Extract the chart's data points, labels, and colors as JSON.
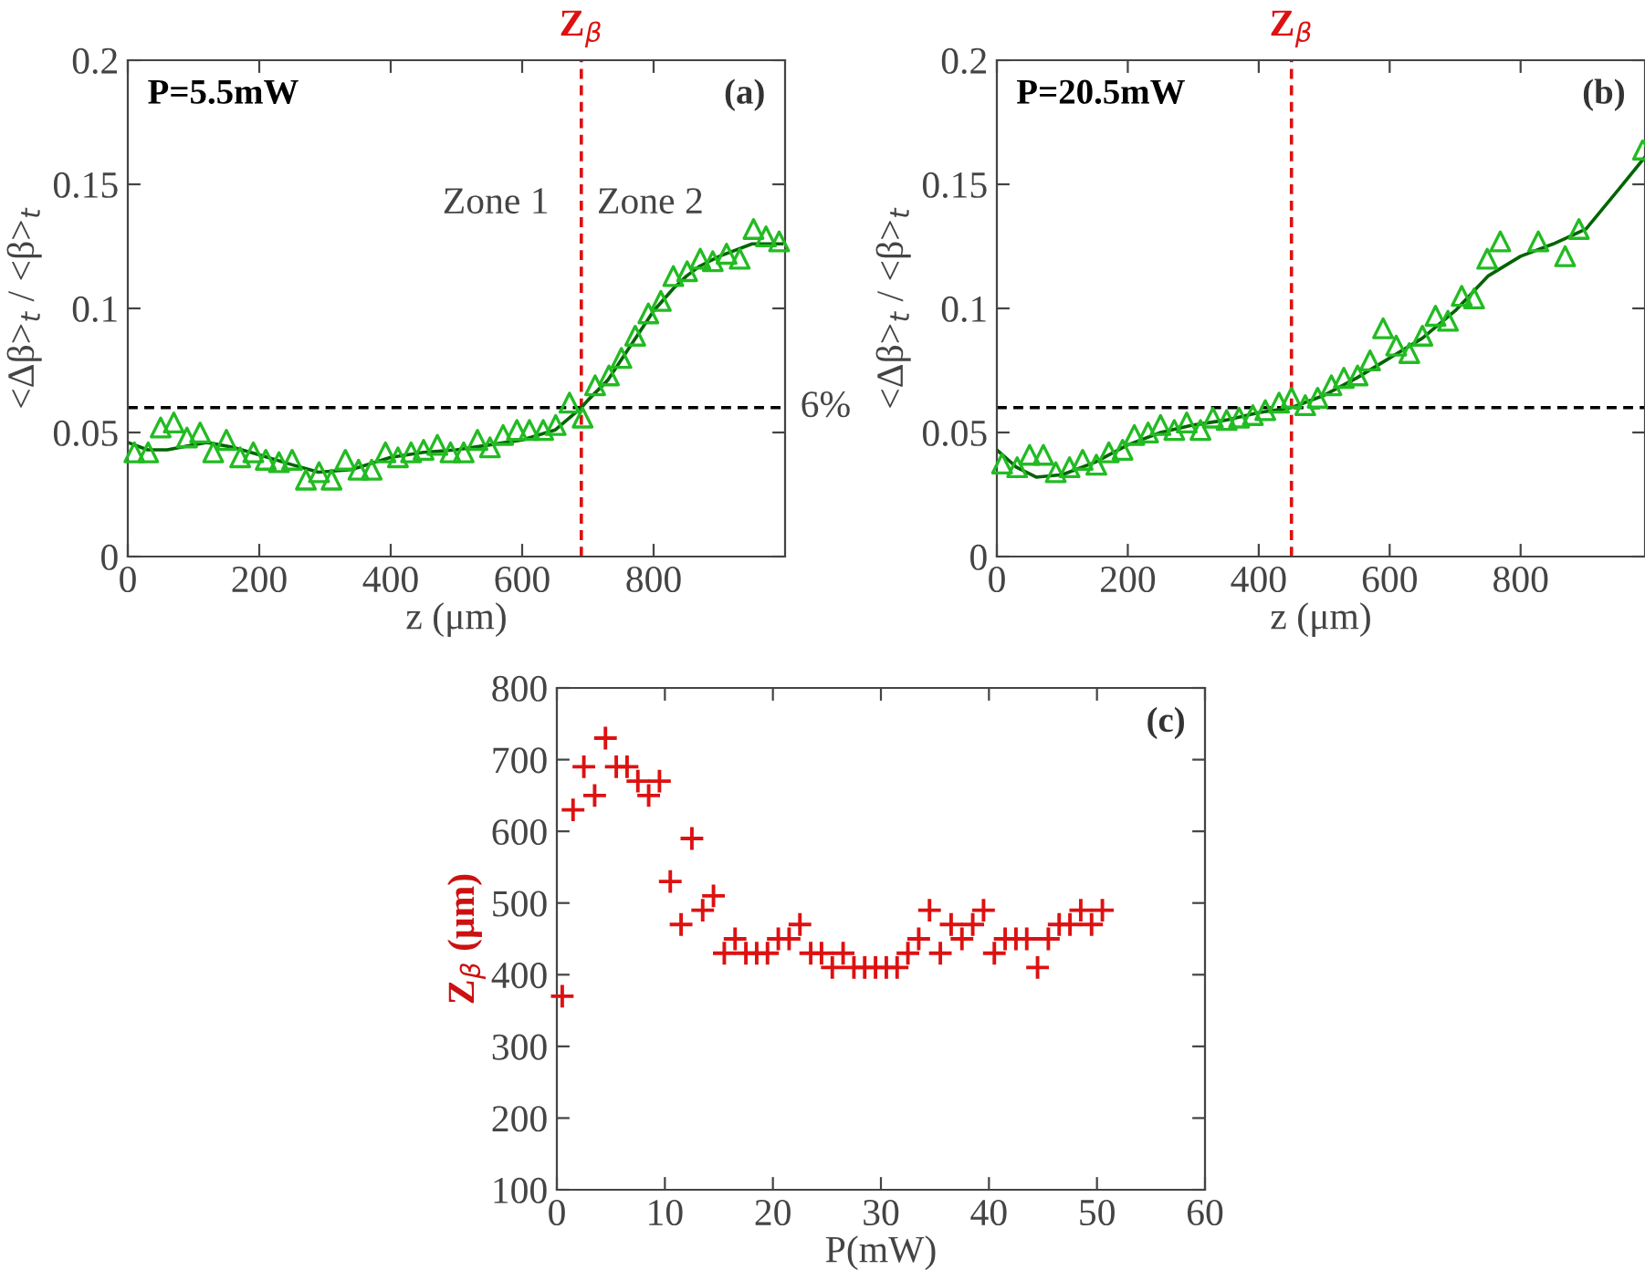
{
  "chart_data": [
    {
      "type": "scatter",
      "xlabel": "z (μm)",
      "ylabel": "<Δβ>$_{t}$ / <β>$_{t}$",
      "xlim": [
        0,
        1000
      ],
      "ylim": [
        0,
        0.2
      ],
      "xticks": [
        0,
        200,
        400,
        600,
        800
      ],
      "yticks": [
        0,
        0.05,
        0.1,
        0.15,
        0.2
      ],
      "grid": false,
      "annotations": [
        "P=5.5mW",
        "(a)",
        "Zone 1",
        "Zone 2"
      ],
      "ref_lines": [
        {
          "axis": "y",
          "value": 0.06,
          "label": "6%",
          "color": "#000000",
          "line_style": "dashed"
        },
        {
          "axis": "x",
          "value": 690,
          "label": "Z$_{β}$",
          "color": "#dd1111",
          "line_style": "dashed"
        }
      ],
      "series": [
        {
          "marker": "triangle",
          "color": "#22bb22",
          "x": [
            10,
            31,
            50,
            70,
            90,
            110,
            130,
            150,
            171,
            191,
            210,
            230,
            250,
            271,
            291,
            310,
            331,
            351,
            371,
            392,
            411,
            431,
            450,
            471,
            491,
            511,
            532,
            551,
            571,
            592,
            611,
            632,
            651,
            672,
            692,
            711,
            732,
            751,
            772,
            792,
            811,
            830,
            851,
            871,
            890,
            911,
            931,
            952,
            971,
            991
          ],
          "values": [
            0.042,
            0.042,
            0.052,
            0.054,
            0.048,
            0.05,
            0.042,
            0.047,
            0.04,
            0.042,
            0.039,
            0.038,
            0.039,
            0.031,
            0.034,
            0.031,
            0.039,
            0.035,
            0.035,
            0.042,
            0.04,
            0.042,
            0.043,
            0.045,
            0.042,
            0.042,
            0.047,
            0.044,
            0.049,
            0.051,
            0.051,
            0.051,
            0.053,
            0.062,
            0.056,
            0.069,
            0.073,
            0.08,
            0.089,
            0.098,
            0.103,
            0.113,
            0.115,
            0.12,
            0.119,
            0.122,
            0.12,
            0.132,
            0.129,
            0.127
          ]
        },
        {
          "type": "line",
          "color": "#006400",
          "x": [
            0,
            30,
            60,
            120,
            160,
            200,
            250,
            290,
            340,
            400,
            450,
            500,
            550,
            600,
            650,
            690,
            700,
            730,
            760,
            800,
            830,
            850,
            870,
            900,
            950,
            995
          ],
          "values": [
            0.046,
            0.043,
            0.043,
            0.046,
            0.044,
            0.041,
            0.037,
            0.034,
            0.035,
            0.04,
            0.042,
            0.043,
            0.045,
            0.047,
            0.051,
            0.06,
            0.063,
            0.071,
            0.083,
            0.099,
            0.108,
            0.113,
            0.117,
            0.121,
            0.126,
            0.126
          ]
        }
      ]
    },
    {
      "type": "scatter",
      "xlabel": "z (μm)",
      "ylabel": "<Δβ>$_{t}$ / <β>$_{t}$",
      "xlim": [
        0,
        990
      ],
      "ylim": [
        0,
        0.2
      ],
      "xticks": [
        0,
        200,
        400,
        600,
        800
      ],
      "yticks": [
        0,
        0.05,
        0.1,
        0.15,
        0.2
      ],
      "grid": false,
      "annotations": [
        "P=20.5mW",
        "(b)"
      ],
      "ref_lines": [
        {
          "axis": "y",
          "value": 0.06,
          "color": "#000000",
          "line_style": "dashed"
        },
        {
          "axis": "x",
          "value": 450,
          "label": "Z$_{β}$",
          "color": "#dd1111",
          "line_style": "dashed"
        }
      ],
      "series": [
        {
          "marker": "triangle",
          "color": "#22bb22",
          "x": [
            8,
            31,
            50,
            71,
            90,
            111,
            131,
            152,
            171,
            192,
            210,
            231,
            250,
            271,
            290,
            311,
            330,
            351,
            370,
            391,
            410,
            431,
            450,
            471,
            490,
            511,
            530,
            551,
            570,
            590,
            610,
            630,
            650,
            670,
            689,
            710,
            729,
            749,
            769,
            827,
            868,
            889,
            987
          ],
          "values": [
            0.0375,
            0.036,
            0.041,
            0.041,
            0.034,
            0.036,
            0.039,
            0.037,
            0.042,
            0.043,
            0.049,
            0.05,
            0.053,
            0.051,
            0.054,
            0.051,
            0.056,
            0.055,
            0.056,
            0.057,
            0.059,
            0.062,
            0.064,
            0.061,
            0.064,
            0.069,
            0.072,
            0.073,
            0.079,
            0.092,
            0.085,
            0.082,
            0.089,
            0.097,
            0.095,
            0.105,
            0.104,
            0.12,
            0.127,
            0.127,
            0.121,
            0.132,
            0.164
          ]
        },
        {
          "type": "line",
          "color": "#006400",
          "x": [
            0,
            30,
            60,
            100,
            150,
            200,
            250,
            300,
            350,
            400,
            450,
            500,
            550,
            600,
            650,
            700,
            750,
            800,
            850,
            900,
            950,
            990
          ],
          "values": [
            0.043,
            0.036,
            0.032,
            0.033,
            0.038,
            0.045,
            0.05,
            0.053,
            0.055,
            0.058,
            0.06,
            0.065,
            0.072,
            0.08,
            0.088,
            0.099,
            0.113,
            0.121,
            0.126,
            0.132,
            0.148,
            0.161
          ]
        }
      ]
    },
    {
      "type": "scatter",
      "xlabel": "P(mW)",
      "ylabel": "Z$_{β}$ (μm)",
      "xlim": [
        0,
        60
      ],
      "ylim": [
        100,
        800
      ],
      "xticks": [
        0,
        10,
        20,
        30,
        40,
        50,
        60
      ],
      "yticks": [
        100,
        200,
        300,
        400,
        500,
        600,
        700,
        800
      ],
      "grid": false,
      "marker": "cross",
      "annotations": [
        "(c)"
      ],
      "series": [
        {
          "color": "#dd1111",
          "x": [
            0.5,
            1.5,
            2.5,
            3.5,
            4.5,
            5.5,
            6.5,
            7.5,
            8.5,
            9.5,
            10.5,
            11.5,
            12.5,
            13.5,
            14.5,
            15.5,
            16.5,
            17.5,
            18.5,
            19.5,
            20.5,
            21.5,
            22.5,
            23.5,
            24.5,
            25.5,
            26.5,
            27.5,
            28.5,
            29.5,
            30.5,
            31.5,
            32.5,
            33.5,
            34.5,
            35.5,
            36.5,
            37.5,
            38.5,
            39.5,
            40.5,
            41.5,
            42.5,
            43.5,
            44.5,
            45.5,
            46.5,
            47.5,
            48.5,
            49.5,
            50.5
          ],
          "values": [
            370,
            630,
            690,
            650,
            730,
            690,
            690,
            670,
            650,
            670,
            530,
            470,
            590,
            490,
            510,
            430,
            450,
            430,
            430,
            430,
            450,
            450,
            470,
            430,
            430,
            410,
            430,
            410,
            410,
            410,
            410,
            410,
            430,
            450,
            490,
            430,
            470,
            450,
            470,
            490,
            430,
            450,
            450,
            450,
            410,
            450,
            470,
            470,
            490,
            470,
            490
          ]
        }
      ]
    }
  ]
}
